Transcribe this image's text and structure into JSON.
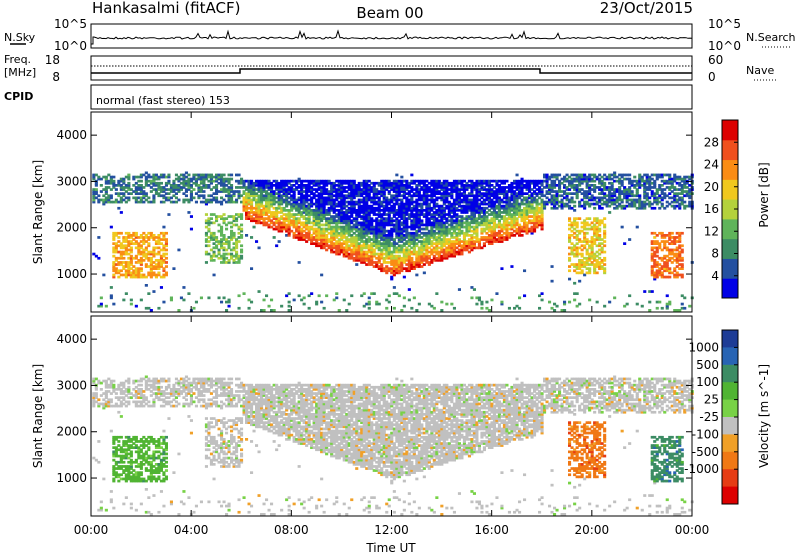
{
  "header": {
    "site": "Hankasalmi (fitACF)",
    "beam": "Beam 00",
    "date": "23/Oct/2015"
  },
  "sky_panel": {
    "left_label": "N.Sky",
    "right_label": "N.Search",
    "left_ticks": [
      "10^5",
      "10^0"
    ],
    "right_ticks": [
      "10^5",
      "10^0"
    ]
  },
  "freq_panel": {
    "left_label_line1": "Freq.",
    "left_label_line2": "[MHz]",
    "right_label": "Nave",
    "left_ticks": [
      "18",
      "8"
    ],
    "right_ticks": [
      "60",
      "0"
    ]
  },
  "cpid_panel": {
    "label": "CPID",
    "text": "normal (fast stereo) 153"
  },
  "x_axis": {
    "label": "Time UT",
    "ticks": [
      "00:00",
      "04:00",
      "08:00",
      "12:00",
      "16:00",
      "20:00",
      "00:00"
    ]
  },
  "chart_data": [
    {
      "type": "heatmap",
      "title": "",
      "xlabel": "Time UT",
      "ylabel": "Slant Range [km]",
      "xlim": [
        0,
        24
      ],
      "ylim": [
        180,
        4500
      ],
      "yticks": [
        1000,
        2000,
        3000,
        4000
      ],
      "colorbar": {
        "label": "Power [dB]",
        "ticks": [
          4,
          8,
          12,
          16,
          20,
          24,
          28
        ],
        "range": [
          0,
          32
        ],
        "colors": [
          "#0000e6",
          "#2450a0",
          "#3c8c64",
          "#5fb45a",
          "#b4d23c",
          "#f0c81e",
          "#fa8c14",
          "#f0501e",
          "#dc0000"
        ]
      }
    },
    {
      "type": "heatmap",
      "title": "",
      "xlabel": "Time UT",
      "ylabel": "Slant Range [km]",
      "xlim": [
        0,
        24
      ],
      "ylim": [
        180,
        4500
      ],
      "yticks": [
        1000,
        2000,
        3000,
        4000
      ],
      "colorbar": {
        "label": "Velocity [m s^-1]",
        "ticks": [
          "1000",
          "500",
          "100",
          "25",
          "-25",
          "-100",
          "-500",
          "-1000"
        ],
        "colors": [
          "#1e3c96",
          "#2864b4",
          "#3c8c64",
          "#50b432",
          "#78d246",
          "#c0c0c0",
          "#f0a028",
          "#f07814",
          "#e63c14",
          "#dc0000"
        ]
      }
    }
  ]
}
